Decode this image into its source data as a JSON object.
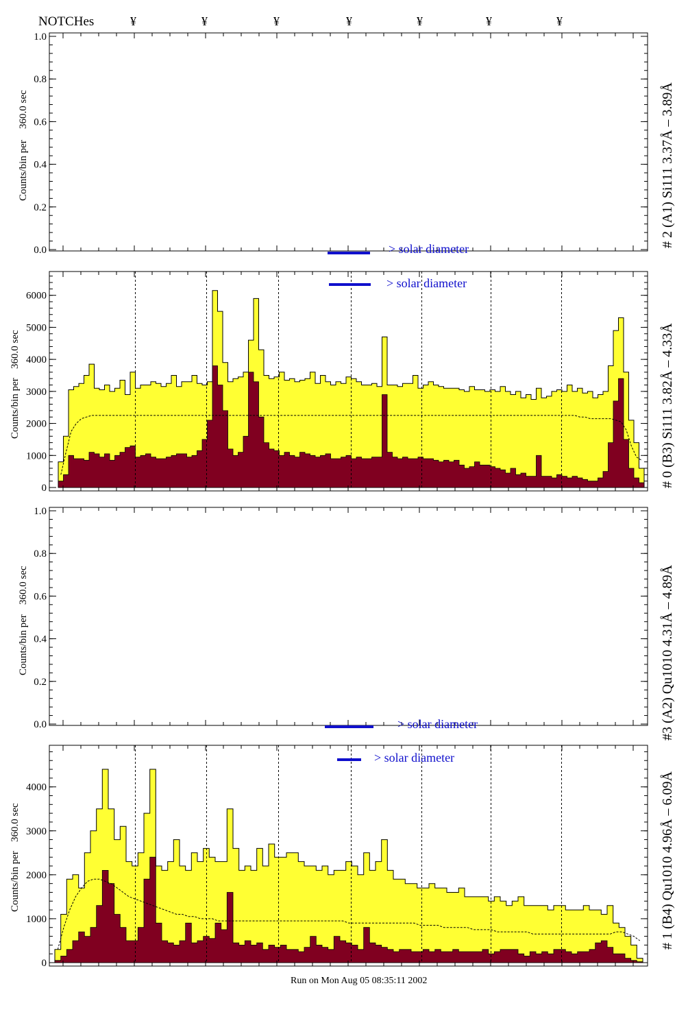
{
  "header": {
    "title": "NOTCHes",
    "notch_symbol": "¥",
    "notch_count": 7
  },
  "footer": {
    "run_text": "Run on Mon Aug 05 08:35:11 2002"
  },
  "colors": {
    "total_fill": "#ffff33",
    "background_fill": "#800020",
    "solar_bar": "#1010cc",
    "frame": "#000000"
  },
  "chart_data": [
    {
      "type": "histogram",
      "panel_label": "# 2 (A1) Si111  3.37Å – 3.89Å",
      "ylabel_counts": "Counts/bin per",
      "ylabel_interval": "360.0 sec",
      "ylim": [
        0,
        1.0
      ],
      "yticks": [
        "0.0",
        "0.2",
        "0.4",
        "0.6",
        "0.8",
        "1.0"
      ],
      "solar_labels": [
        "> solar diameter"
      ],
      "series": []
    },
    {
      "type": "histogram",
      "panel_label": "# 0 (B3) Si111  3.82Å – 4.33Å",
      "ylabel_counts": "Counts/bin per",
      "ylabel_interval": "360.0 sec",
      "ylim": [
        0,
        6700
      ],
      "yticks": [
        "0",
        "1000",
        "2000",
        "3000",
        "4000",
        "5000",
        "6000"
      ],
      "solar_labels": [
        "> solar diameter"
      ],
      "series": [
        {
          "name": "total",
          "values": [
            800,
            1600,
            3050,
            3150,
            3250,
            3500,
            3850,
            3100,
            3050,
            3200,
            3000,
            3100,
            3350,
            2900,
            3600,
            3100,
            3200,
            3200,
            3300,
            3250,
            3150,
            3250,
            3500,
            3150,
            3300,
            3300,
            3500,
            3250,
            3200,
            3300,
            6150,
            5500,
            3900,
            3300,
            3400,
            3450,
            3600,
            4600,
            5900,
            4300,
            3500,
            3400,
            3450,
            3600,
            3350,
            3400,
            3300,
            3350,
            3400,
            3600,
            3250,
            3500,
            3300,
            3200,
            3300,
            3250,
            3450,
            3400,
            3300,
            3200,
            3200,
            3250,
            3150,
            4700,
            3200,
            3200,
            3150,
            3250,
            3250,
            3500,
            3100,
            3200,
            3300,
            3200,
            3150,
            3100,
            3100,
            3100,
            3050,
            3000,
            3150,
            3050,
            3050,
            3000,
            3050,
            3000,
            3150,
            3000,
            2900,
            3000,
            2800,
            2900,
            2750,
            3100,
            2800,
            2850,
            3000,
            3050,
            3000,
            3200,
            3000,
            3100,
            2950,
            3000,
            2800,
            2900,
            3000,
            3800,
            4900,
            5300,
            3600,
            2100,
            1400,
            600
          ]
        },
        {
          "name": "background",
          "values": [
            200,
            400,
            1000,
            900,
            900,
            850,
            1100,
            1050,
            950,
            1050,
            850,
            1000,
            1100,
            1250,
            1300,
            950,
            1000,
            1050,
            950,
            900,
            900,
            950,
            1000,
            1050,
            1050,
            950,
            1000,
            1150,
            1500,
            2100,
            3800,
            3200,
            2400,
            1200,
            1000,
            1100,
            1600,
            3600,
            3300,
            2200,
            1400,
            1200,
            1150,
            1000,
            1100,
            1000,
            950,
            1100,
            1050,
            1000,
            950,
            1000,
            1050,
            900,
            900,
            950,
            1000,
            900,
            950,
            900,
            900,
            950,
            950,
            2900,
            1100,
            950,
            900,
            950,
            900,
            900,
            950,
            900,
            900,
            850,
            800,
            850,
            800,
            850,
            700,
            600,
            650,
            800,
            700,
            700,
            650,
            600,
            550,
            450,
            600,
            400,
            450,
            350,
            350,
            1000,
            350,
            350,
            300,
            400,
            350,
            300,
            350,
            300,
            250,
            200,
            200,
            300,
            500,
            1400,
            2700,
            3400,
            1500,
            600,
            300,
            150
          ]
        },
        {
          "name": "dashed",
          "values": [
            400,
            1100,
            1750,
            2000,
            2150,
            2200,
            2250,
            2250,
            2250,
            2250,
            2250,
            2250,
            2250,
            2250,
            2250,
            2250,
            2250,
            2250,
            2250,
            2250,
            2250,
            2250,
            2250,
            2250,
            2250,
            2250,
            2250,
            2250,
            2250,
            2250,
            2250,
            2250,
            2250,
            2250,
            2250,
            2250,
            2250,
            2250,
            2250,
            2250,
            2250,
            2250,
            2250,
            2250,
            2250,
            2250,
            2250,
            2250,
            2250,
            2250,
            2250,
            2250,
            2250,
            2250,
            2250,
            2250,
            2250,
            2250,
            2250,
            2250,
            2250,
            2250,
            2250,
            2250,
            2250,
            2250,
            2250,
            2250,
            2250,
            2250,
            2250,
            2250,
            2250,
            2250,
            2250,
            2250,
            2250,
            2250,
            2250,
            2250,
            2250,
            2250,
            2250,
            2250,
            2250,
            2250,
            2250,
            2250,
            2250,
            2250,
            2250,
            2250,
            2250,
            2250,
            2250,
            2250,
            2250,
            2250,
            2250,
            2250,
            2250,
            2200,
            2200,
            2150,
            2150,
            2150,
            2150,
            2150,
            2100,
            2050,
            1800,
            1300,
            950,
            850
          ]
        }
      ]
    },
    {
      "type": "histogram",
      "panel_label": "#3 (A2) Qu1010  4.31Å – 4.89Å",
      "ylabel_counts": "Counts/bin per",
      "ylabel_interval": "360.0 sec",
      "ylim": [
        0,
        1.0
      ],
      "yticks": [
        "0.0",
        "0.2",
        "0.4",
        "0.6",
        "0.8",
        "1.0"
      ],
      "solar_labels": [
        "> solar diameter"
      ],
      "series": []
    },
    {
      "type": "histogram",
      "panel_label": "# 1 (B4) Qu1010 4.96Å – 6.09Å",
      "ylabel_counts": "Counts/bin per",
      "ylabel_interval": "360.0 sec",
      "ylim": [
        0,
        4900
      ],
      "yticks": [
        "0",
        "1000",
        "2000",
        "3000",
        "4000"
      ],
      "solar_labels": [
        "> solar diameter",
        "> solar diameter"
      ],
      "series": [
        {
          "name": "total",
          "values": [
            300,
            1100,
            1900,
            2000,
            1700,
            2500,
            3000,
            3500,
            4400,
            3500,
            2800,
            3100,
            2300,
            2200,
            2500,
            3400,
            4400,
            2200,
            2100,
            2300,
            2800,
            2200,
            2100,
            2500,
            2300,
            2600,
            2400,
            2300,
            2300,
            3500,
            2600,
            2100,
            2200,
            2100,
            2600,
            2200,
            2700,
            2400,
            2400,
            2500,
            2500,
            2300,
            2200,
            2200,
            2100,
            2200,
            2000,
            2100,
            2100,
            2300,
            2200,
            2000,
            2500,
            2100,
            2300,
            2800,
            2100,
            1900,
            1900,
            1800,
            1800,
            1700,
            1700,
            1800,
            1700,
            1700,
            1600,
            1600,
            1700,
            1500,
            1500,
            1500,
            1500,
            1400,
            1500,
            1400,
            1300,
            1400,
            1500,
            1300,
            1300,
            1300,
            1300,
            1200,
            1300,
            1300,
            1200,
            1200,
            1200,
            1300,
            1200,
            1200,
            1100,
            1300,
            900,
            800,
            600,
            400,
            100
          ]
        },
        {
          "name": "background",
          "values": [
            50,
            150,
            300,
            500,
            700,
            600,
            800,
            1300,
            2100,
            1800,
            1100,
            800,
            500,
            500,
            800,
            1900,
            2400,
            900,
            500,
            450,
            400,
            500,
            900,
            450,
            500,
            600,
            550,
            900,
            750,
            1600,
            450,
            400,
            500,
            400,
            450,
            300,
            400,
            350,
            400,
            300,
            300,
            250,
            350,
            600,
            400,
            350,
            300,
            600,
            500,
            450,
            400,
            300,
            800,
            450,
            400,
            350,
            300,
            250,
            300,
            300,
            250,
            250,
            300,
            250,
            300,
            250,
            250,
            300,
            250,
            250,
            250,
            250,
            300,
            200,
            250,
            300,
            300,
            300,
            200,
            150,
            250,
            200,
            250,
            200,
            300,
            300,
            250,
            200,
            250,
            250,
            300,
            450,
            500,
            350,
            200,
            200,
            100,
            50,
            20
          ]
        },
        {
          "name": "dashed",
          "values": [
            300,
            800,
            1200,
            1500,
            1700,
            1850,
            1900,
            1900,
            1850,
            1800,
            1700,
            1600,
            1500,
            1450,
            1400,
            1350,
            1300,
            1250,
            1200,
            1150,
            1100,
            1100,
            1050,
            1050,
            1000,
            1000,
            1000,
            950,
            950,
            950,
            950,
            950,
            950,
            950,
            950,
            950,
            950,
            950,
            950,
            950,
            950,
            950,
            950,
            950,
            950,
            950,
            950,
            950,
            950,
            900,
            900,
            900,
            900,
            900,
            900,
            900,
            900,
            900,
            900,
            900,
            900,
            850,
            850,
            850,
            850,
            800,
            800,
            800,
            800,
            800,
            750,
            750,
            750,
            750,
            700,
            700,
            700,
            700,
            700,
            700,
            650,
            650,
            650,
            650,
            650,
            650,
            650,
            650,
            650,
            650,
            650,
            650,
            650,
            650,
            700,
            700,
            650,
            600,
            500
          ]
        }
      ]
    }
  ]
}
